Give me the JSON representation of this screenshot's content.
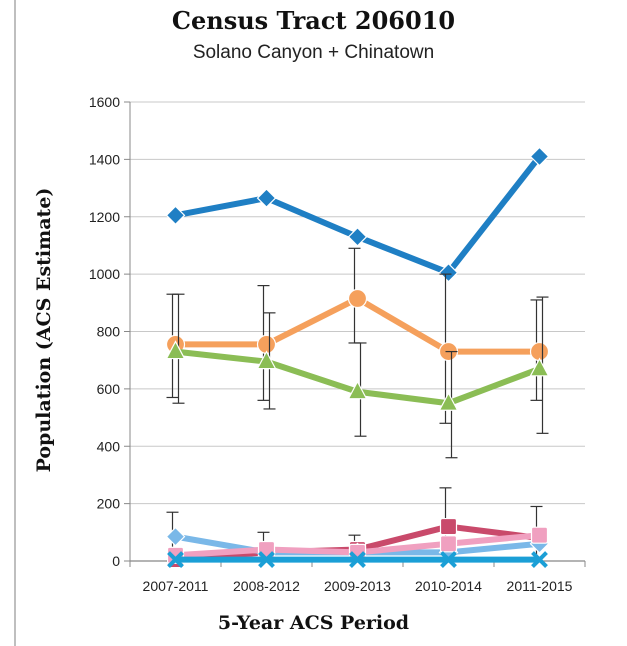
{
  "chart_data": {
    "type": "line",
    "title": "Census Tract 206010",
    "subtitle": "Solano Canyon + Chinatown",
    "xlabel": "5-Year ACS Period",
    "ylabel": "Population (ACS Estimate)",
    "categories": [
      "2007-2011",
      "2008-2012",
      "2009-2013",
      "2010-2014",
      "2011-2015"
    ],
    "ylim": [
      0,
      1600
    ],
    "yticks": [
      "0",
      "200",
      "400",
      "600",
      "800",
      "1000",
      "1200",
      "1400",
      "1600"
    ],
    "grid": true,
    "series": [
      {
        "color": "#1f7fc4",
        "marker": "diamond",
        "values": [
          1205,
          1265,
          1130,
          1005,
          1410
        ],
        "err_low": [
          null,
          null,
          null,
          null,
          null
        ],
        "err_high": [
          null,
          null,
          null,
          null,
          null
        ]
      },
      {
        "color": "#f5a05c",
        "marker": "circle",
        "values": [
          755,
          755,
          915,
          730,
          730
        ],
        "err_low": [
          570,
          560,
          760,
          480,
          560
        ],
        "err_high": [
          930,
          960,
          1090,
          1000,
          910
        ]
      },
      {
        "color": "#8bbd55",
        "marker": "triangle",
        "values": [
          730,
          695,
          590,
          550,
          670
        ],
        "err_low": [
          550,
          530,
          435,
          360,
          445
        ],
        "err_high": [
          930,
          865,
          760,
          730,
          920
        ]
      },
      {
        "color": "#c94a6b",
        "marker": "square",
        "values": [
          5,
          30,
          40,
          120,
          80
        ],
        "err_low": [
          0,
          0,
          0,
          0,
          0
        ],
        "err_high": [
          170,
          100,
          90,
          255,
          190
        ]
      },
      {
        "color": "#7ab8e8",
        "marker": "diamond",
        "values": [
          85,
          30,
          30,
          30,
          60
        ],
        "err_low": [
          null,
          null,
          null,
          null,
          null
        ],
        "err_high": [
          null,
          null,
          null,
          null,
          null
        ]
      },
      {
        "color": "#f0a0c0",
        "marker": "square",
        "values": [
          20,
          40,
          30,
          60,
          90
        ],
        "err_low": [
          null,
          null,
          null,
          null,
          null
        ],
        "err_high": [
          null,
          null,
          null,
          null,
          null
        ]
      },
      {
        "color": "#1b9fd6",
        "marker": "cross",
        "values": [
          5,
          5,
          5,
          5,
          5
        ],
        "err_low": [
          null,
          null,
          null,
          null,
          null
        ],
        "err_high": [
          null,
          null,
          null,
          null,
          null
        ]
      }
    ]
  }
}
